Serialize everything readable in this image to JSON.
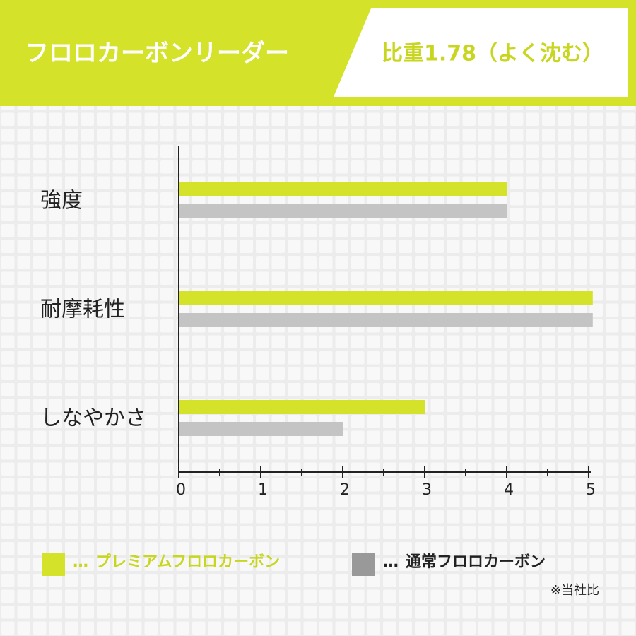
{
  "chart_data": {
    "type": "hbar",
    "title": "フロロカーボンリーダー",
    "subtitle": "比重1.78（よく沈む）",
    "categories": [
      "強度",
      "耐摩耗性",
      "しなやかさ"
    ],
    "series": [
      {
        "name": "プレミアムフロロカーボン",
        "color": "#d4e22a",
        "values": [
          4,
          5.05,
          3
        ]
      },
      {
        "name": "通常フロロカーボン",
        "color": "#c4c4c4",
        "values": [
          4,
          5.05,
          2
        ]
      }
    ],
    "legend_marker": "…",
    "xlim": [
      0,
      5
    ],
    "xticks": [
      0,
      1,
      2,
      3,
      4,
      5
    ],
    "minor_xticks": [
      0.5,
      1.5,
      2.5,
      3.5,
      4.5
    ],
    "note": "※当社比"
  }
}
